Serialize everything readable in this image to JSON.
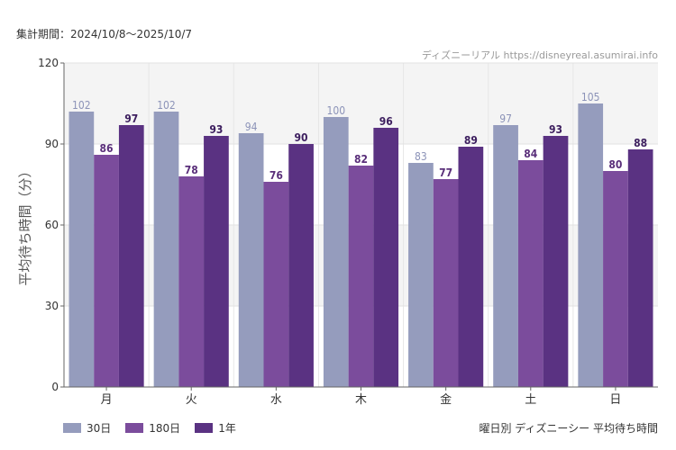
{
  "header": {
    "period": "集計期間：2024/10/8～2025/10/7",
    "credit": "ディズニーリアル https://disneyreal.asumirai.info"
  },
  "footer": {
    "title": "曜日別 ディズニーシー 平均待ち時間"
  },
  "chart_data": {
    "type": "bar",
    "categories": [
      "月",
      "火",
      "水",
      "木",
      "金",
      "土",
      "日"
    ],
    "series": [
      {
        "name": "30日",
        "values": [
          102,
          102,
          94,
          100,
          83,
          97,
          105
        ],
        "color": "#959cbd",
        "label_color": "#8c93b8"
      },
      {
        "name": "180日",
        "values": [
          86,
          78,
          76,
          82,
          77,
          84,
          80
        ],
        "color": "#7b4c9c",
        "label_color": "#5a2f7a"
      },
      {
        "name": "1年",
        "values": [
          97,
          93,
          90,
          96,
          89,
          93,
          88
        ],
        "color": "#5a3282",
        "label_color": "#3d1f5f"
      }
    ],
    "ylabel": "平均待ち時間（分）",
    "xlabel": "",
    "ylim": [
      0,
      120
    ],
    "yticks": [
      0,
      30,
      60,
      90,
      120
    ],
    "grid": true,
    "legend_position": "bottom-left"
  }
}
